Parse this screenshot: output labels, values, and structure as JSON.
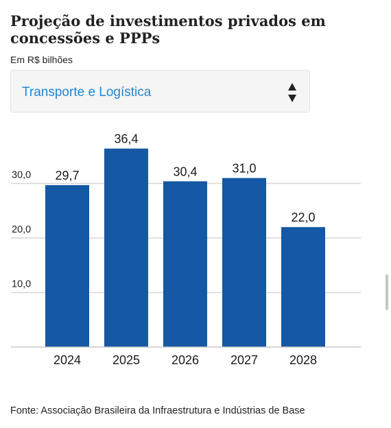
{
  "header": {
    "title": "Projeção de investimentos privados em concessões e PPPs",
    "unit": "Em R$ bilhões"
  },
  "selector": {
    "selected": "Transporte e Logística",
    "arrow_icon": "up-down-arrows-icon"
  },
  "chart_data": {
    "type": "bar",
    "categories": [
      "2024",
      "2025",
      "2026",
      "2027",
      "2028"
    ],
    "values": [
      29.7,
      36.4,
      30.4,
      31.0,
      22.0
    ],
    "value_labels": [
      "29,7",
      "36,4",
      "30,4",
      "31,0",
      "22,0"
    ],
    "yticks": [
      10,
      20,
      30
    ],
    "ytick_labels": [
      "10,0",
      "20,0",
      "30,0"
    ],
    "ylim": [
      0,
      38
    ],
    "grid": true,
    "legend": "none",
    "bar_color": "#1558a3",
    "title": "",
    "xlabel": "",
    "ylabel": ""
  },
  "footer": {
    "source": "Fonte: Associação Brasileira da Infraestrutura e Indústrias de Base"
  }
}
